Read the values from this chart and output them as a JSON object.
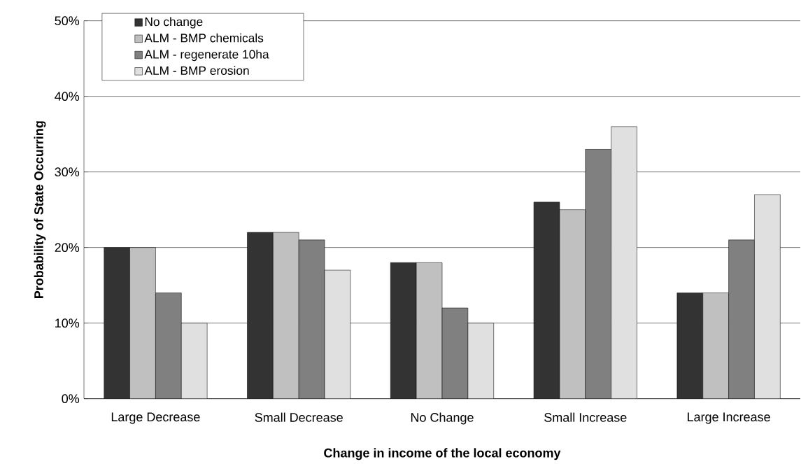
{
  "chart_data": {
    "type": "bar",
    "xlabel": "Change in income of the local economy",
    "ylabel": "Probability of State Occurring",
    "categories": [
      "Large Decrease",
      "Small Decrease",
      "No Change",
      "Small Increase",
      "Large Increase"
    ],
    "series": [
      {
        "name": "No change",
        "color": "#333333",
        "values": [
          20,
          22,
          18,
          26,
          14
        ]
      },
      {
        "name": "ALM - BMP chemicals",
        "color": "#c0c0c0",
        "values": [
          20,
          22,
          18,
          25,
          14
        ]
      },
      {
        "name": "ALM - regenerate 10ha",
        "color": "#808080",
        "values": [
          14,
          21,
          12,
          33,
          21
        ]
      },
      {
        "name": "ALM - BMP erosion",
        "color": "#e0e0e0",
        "values": [
          10,
          17,
          10,
          36,
          27
        ]
      }
    ],
    "ylim": [
      0,
      50
    ],
    "yticks": [
      {
        "value": 0,
        "label": "0%"
      },
      {
        "value": 10,
        "label": "10%"
      },
      {
        "value": 20,
        "label": "20%"
      },
      {
        "value": 30,
        "label": "30%"
      },
      {
        "value": 40,
        "label": "40%"
      },
      {
        "value": 50,
        "label": "50%"
      }
    ],
    "grid": "y",
    "legend": "top left"
  }
}
